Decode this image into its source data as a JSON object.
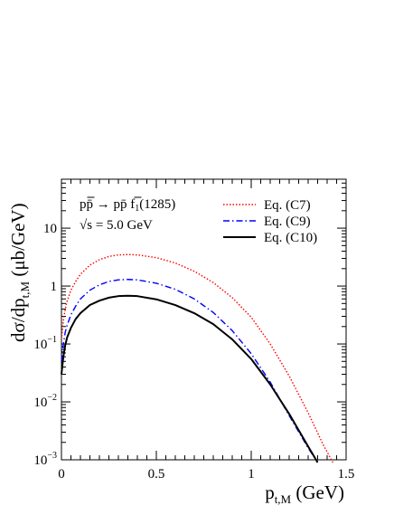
{
  "chart_data": {
    "type": "line",
    "xlabel": "p",
    "xlabel_sub": "t,M",
    "xlabel_unit": " (GeV)",
    "ylabel": "dσ/dp",
    "ylabel_sub": "t,M",
    "ylabel_unit": " (μb/GeV)",
    "xlim": [
      0,
      1.5
    ],
    "ylim": [
      0.001,
      70
    ],
    "yscale": "log",
    "grid": false,
    "legend_position": "top-right",
    "x_ticks": [
      {
        "value": 0,
        "label": "0"
      },
      {
        "value": 0.5,
        "label": "0.5"
      },
      {
        "value": 1,
        "label": "1"
      },
      {
        "value": 1.5,
        "label": "1.5"
      }
    ],
    "y_ticks": [
      {
        "value": 0.001,
        "base": "10",
        "exp": "−3"
      },
      {
        "value": 0.01,
        "base": "10",
        "exp": "−2"
      },
      {
        "value": 0.1,
        "base": "10",
        "exp": "−1"
      },
      {
        "value": 1,
        "base": "1",
        "exp": ""
      },
      {
        "value": 10,
        "base": "10",
        "exp": ""
      }
    ],
    "annotations": {
      "reaction": "pp̄ → pp̄ f",
      "reaction_sub": "1",
      "reaction_tail": "(1285)",
      "energy": "√s = 5.0 GeV"
    },
    "series": [
      {
        "name": "Eq. (C7)",
        "color": "#ff0000",
        "style": "dotted",
        "points": [
          [
            0.0,
            0.12
          ],
          [
            0.01,
            0.25
          ],
          [
            0.02,
            0.4
          ],
          [
            0.03,
            0.55
          ],
          [
            0.05,
            0.85
          ],
          [
            0.075,
            1.2
          ],
          [
            0.1,
            1.6
          ],
          [
            0.15,
            2.3
          ],
          [
            0.2,
            2.85
          ],
          [
            0.25,
            3.25
          ],
          [
            0.3,
            3.45
          ],
          [
            0.35,
            3.5
          ],
          [
            0.4,
            3.45
          ],
          [
            0.5,
            3.1
          ],
          [
            0.6,
            2.5
          ],
          [
            0.7,
            1.8
          ],
          [
            0.8,
            1.15
          ],
          [
            0.9,
            0.63
          ],
          [
            1.0,
            0.29
          ],
          [
            1.1,
            0.1
          ],
          [
            1.2,
            0.028
          ],
          [
            1.3,
            0.0065
          ],
          [
            1.38,
            0.0018
          ],
          [
            1.43,
            0.0009
          ]
        ]
      },
      {
        "name": "Eq. (C9)",
        "color": "#0000ff",
        "style": "dashdot",
        "points": [
          [
            0.0,
            0.05
          ],
          [
            0.01,
            0.1
          ],
          [
            0.02,
            0.16
          ],
          [
            0.03,
            0.21
          ],
          [
            0.05,
            0.32
          ],
          [
            0.075,
            0.45
          ],
          [
            0.1,
            0.6
          ],
          [
            0.15,
            0.85
          ],
          [
            0.2,
            1.05
          ],
          [
            0.25,
            1.2
          ],
          [
            0.3,
            1.28
          ],
          [
            0.35,
            1.3
          ],
          [
            0.4,
            1.28
          ],
          [
            0.5,
            1.12
          ],
          [
            0.6,
            0.88
          ],
          [
            0.7,
            0.6
          ],
          [
            0.8,
            0.35
          ],
          [
            0.9,
            0.17
          ],
          [
            1.0,
            0.068
          ],
          [
            1.1,
            0.022
          ],
          [
            1.2,
            0.0058
          ],
          [
            1.3,
            0.0016
          ],
          [
            1.35,
            0.0009
          ]
        ]
      },
      {
        "name": "Eq. (C10)",
        "color": "#000000",
        "style": "solid",
        "points": [
          [
            0.0,
            0.03
          ],
          [
            0.01,
            0.06
          ],
          [
            0.02,
            0.095
          ],
          [
            0.03,
            0.13
          ],
          [
            0.05,
            0.19
          ],
          [
            0.075,
            0.27
          ],
          [
            0.1,
            0.34
          ],
          [
            0.15,
            0.47
          ],
          [
            0.2,
            0.56
          ],
          [
            0.25,
            0.63
          ],
          [
            0.3,
            0.67
          ],
          [
            0.35,
            0.68
          ],
          [
            0.4,
            0.67
          ],
          [
            0.5,
            0.59
          ],
          [
            0.6,
            0.47
          ],
          [
            0.7,
            0.34
          ],
          [
            0.8,
            0.22
          ],
          [
            0.9,
            0.12
          ],
          [
            1.0,
            0.055
          ],
          [
            1.1,
            0.02
          ],
          [
            1.2,
            0.0062
          ],
          [
            1.3,
            0.0017
          ],
          [
            1.35,
            0.0009
          ]
        ]
      }
    ]
  }
}
